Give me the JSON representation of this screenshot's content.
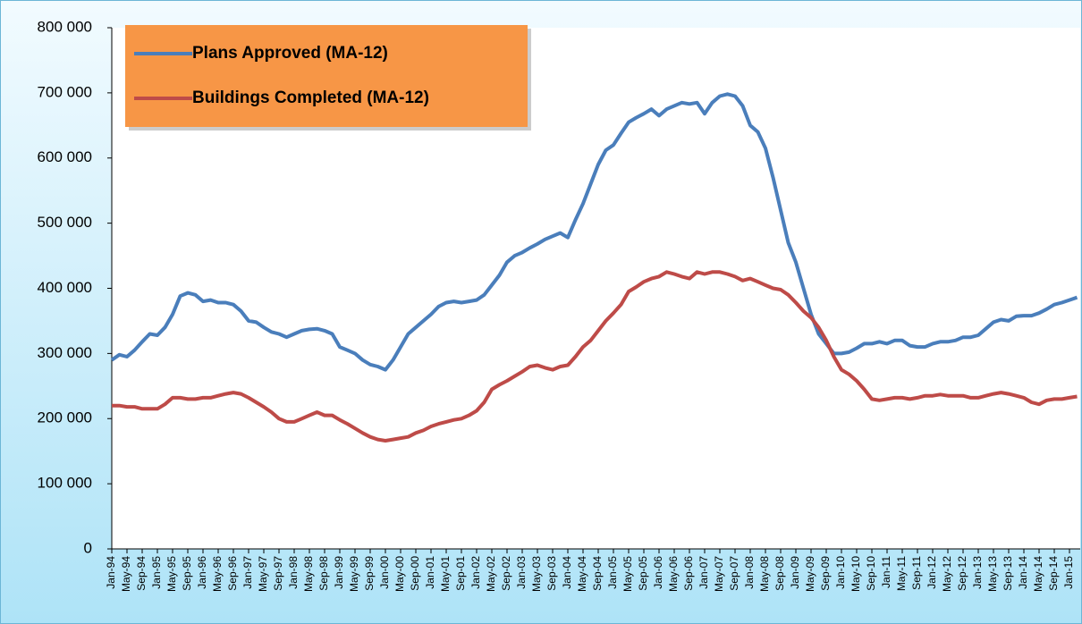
{
  "chart_data": {
    "type": "line",
    "categories": [
      "Jan-94",
      null,
      "May-94",
      null,
      "Sep-94",
      null,
      "Jan-95",
      null,
      "May-95",
      null,
      "Sep-95",
      null,
      "Jan-96",
      null,
      "May-96",
      null,
      "Sep-96",
      null,
      "Jan-97",
      null,
      "May-97",
      null,
      "Sep-97",
      null,
      "Jan-98",
      null,
      "May-98",
      null,
      "Sep-98",
      null,
      "Jan-99",
      null,
      "May-99",
      null,
      "Sep-99",
      null,
      "Jan-00",
      null,
      "May-00",
      null,
      "Sep-00",
      null,
      "Jan-01",
      null,
      "May-01",
      null,
      "Sep-01",
      null,
      "Jan-02",
      null,
      "May-02",
      null,
      "Sep-02",
      null,
      "Jan-03",
      null,
      "May-03",
      null,
      "Sep-03",
      null,
      "Jan-04",
      null,
      "May-04",
      null,
      "Sep-04",
      null,
      "Jan-05",
      null,
      "May-05",
      null,
      "Sep-05",
      null,
      "Jan-06",
      null,
      "May-06",
      null,
      "Sep-06",
      null,
      "Jan-07",
      null,
      "May-07",
      null,
      "Sep-07",
      null,
      "Jan-08",
      null,
      "May-08",
      null,
      "Sep-08",
      null,
      "Jan-09",
      null,
      "May-09",
      null,
      "Sep-09",
      null,
      "Jan-10",
      null,
      "May-10",
      null,
      "Sep-10",
      null,
      "Jan-11",
      null,
      "May-11",
      null,
      "Sep-11",
      null,
      "Jan-12",
      null,
      "May-12",
      null,
      "Sep-12",
      null,
      "Jan-13",
      null,
      "May-13",
      null,
      "Sep-13",
      null,
      "Jan-14",
      null,
      "May-14",
      null,
      "Sep-14",
      null,
      "Jan-15",
      null
    ],
    "series": [
      {
        "name": "Plans Approved (MA-12)",
        "color": "#4a7ebb",
        "values": [
          290000,
          298000,
          295000,
          305000,
          318000,
          330000,
          328000,
          340000,
          360000,
          388000,
          393000,
          390000,
          380000,
          382000,
          378000,
          378000,
          375000,
          365000,
          350000,
          348000,
          340000,
          333000,
          330000,
          325000,
          330000,
          335000,
          337000,
          338000,
          335000,
          330000,
          310000,
          305000,
          300000,
          290000,
          283000,
          280000,
          275000,
          290000,
          310000,
          330000,
          340000,
          350000,
          360000,
          372000,
          378000,
          380000,
          378000,
          380000,
          382000,
          390000,
          405000,
          420000,
          440000,
          450000,
          455000,
          462000,
          468000,
          475000,
          480000,
          485000,
          478000,
          505000,
          530000,
          560000,
          590000,
          612000,
          620000,
          638000,
          655000,
          662000,
          668000,
          675000,
          665000,
          675000,
          680000,
          685000,
          683000,
          685000,
          668000,
          685000,
          695000,
          698000,
          695000,
          680000,
          650000,
          640000,
          615000,
          570000,
          520000,
          470000,
          440000,
          400000,
          360000,
          330000,
          315000,
          300000,
          300000,
          302000,
          308000,
          315000,
          315000,
          318000,
          315000,
          320000,
          320000,
          312000,
          310000,
          310000,
          315000,
          318000,
          318000,
          320000,
          325000,
          325000,
          328000,
          338000,
          348000,
          352000,
          350000,
          357000,
          358000,
          358000,
          362000,
          368000,
          375000,
          378000,
          382000,
          386000
        ]
      },
      {
        "name": "Buildings Completed (MA-12)",
        "color": "#be4b48",
        "values": [
          220000,
          220000,
          218000,
          218000,
          215000,
          215000,
          215000,
          222000,
          232000,
          232000,
          230000,
          230000,
          232000,
          232000,
          235000,
          238000,
          240000,
          238000,
          232000,
          225000,
          218000,
          210000,
          200000,
          195000,
          195000,
          200000,
          205000,
          210000,
          205000,
          205000,
          198000,
          192000,
          185000,
          178000,
          172000,
          168000,
          166000,
          168000,
          170000,
          172000,
          178000,
          182000,
          188000,
          192000,
          195000,
          198000,
          200000,
          205000,
          212000,
          225000,
          245000,
          252000,
          258000,
          265000,
          272000,
          280000,
          282000,
          278000,
          275000,
          280000,
          282000,
          295000,
          310000,
          320000,
          335000,
          350000,
          362000,
          375000,
          395000,
          402000,
          410000,
          415000,
          418000,
          425000,
          422000,
          418000,
          415000,
          425000,
          422000,
          425000,
          425000,
          422000,
          418000,
          412000,
          415000,
          410000,
          405000,
          400000,
          398000,
          390000,
          378000,
          365000,
          355000,
          340000,
          320000,
          295000,
          275000,
          268000,
          258000,
          245000,
          230000,
          228000,
          230000,
          232000,
          232000,
          230000,
          232000,
          235000,
          235000,
          237000,
          235000,
          235000,
          235000,
          232000,
          232000,
          235000,
          238000,
          240000,
          238000,
          235000,
          232000,
          225000,
          222000,
          228000,
          230000,
          230000,
          232000,
          234000
        ]
      }
    ],
    "ylim": [
      0,
      800000
    ],
    "yticks": [
      0,
      {
        "value": 100000,
        "label": "100 000"
      },
      {
        "value": 200000,
        "label": "200 000"
      },
      {
        "value": 300000,
        "label": "300 000"
      },
      {
        "value": 400000,
        "label": "400 000"
      },
      {
        "value": 500000,
        "label": "500 000"
      },
      {
        "value": 600000,
        "label": "600 000"
      },
      {
        "value": 700000,
        "label": "700 000"
      },
      {
        "value": 800000,
        "label": "800 000"
      }
    ],
    "legend": "upper left"
  }
}
